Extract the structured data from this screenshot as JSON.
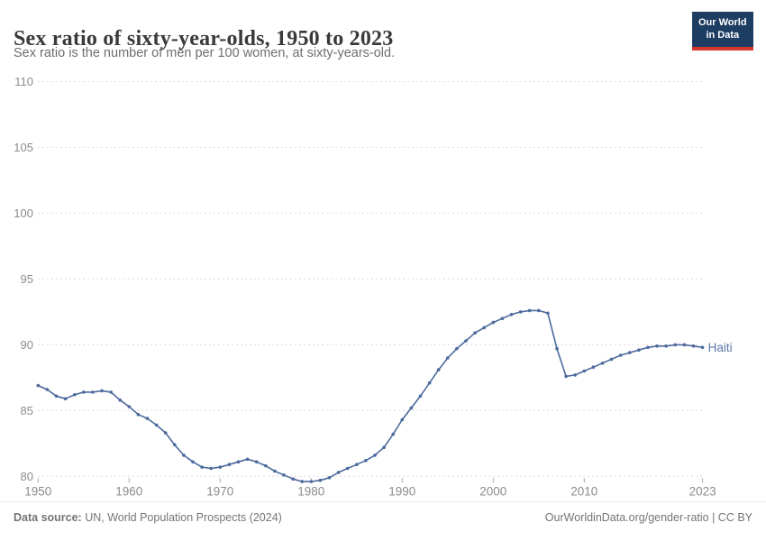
{
  "header": {
    "title": "Sex ratio of sixty-year-olds, 1950 to 2023",
    "subtitle": "Sex ratio is the number of men per 100 women, at sixty-years-old.",
    "logo_line1": "Our World",
    "logo_line2": "in Data"
  },
  "chart_data": {
    "type": "line",
    "title": "Sex ratio of sixty-year-olds, 1950 to 2023",
    "xlabel": "",
    "ylabel": "",
    "xlim": [
      1950,
      2023
    ],
    "ylim": [
      80,
      110
    ],
    "x_ticks": [
      1950,
      1960,
      1970,
      1980,
      1990,
      2000,
      2010,
      2023
    ],
    "y_ticks": [
      80,
      85,
      90,
      95,
      100,
      105,
      110
    ],
    "grid": "horizontal-dashed",
    "legend_position": "end-of-line-label",
    "entity_label": "Haiti",
    "series": [
      {
        "name": "Haiti",
        "x": [
          1950,
          1951,
          1952,
          1953,
          1954,
          1955,
          1956,
          1957,
          1958,
          1959,
          1960,
          1961,
          1962,
          1963,
          1964,
          1965,
          1966,
          1967,
          1968,
          1969,
          1970,
          1971,
          1972,
          1973,
          1974,
          1975,
          1976,
          1977,
          1978,
          1979,
          1980,
          1981,
          1982,
          1983,
          1984,
          1985,
          1986,
          1987,
          1988,
          1989,
          1990,
          1991,
          1992,
          1993,
          1994,
          1995,
          1996,
          1997,
          1998,
          1999,
          2000,
          2001,
          2002,
          2003,
          2004,
          2005,
          2006,
          2007,
          2008,
          2009,
          2010,
          2011,
          2012,
          2013,
          2014,
          2015,
          2016,
          2017,
          2018,
          2019,
          2020,
          2021,
          2022,
          2023
        ],
        "values": [
          86.9,
          86.6,
          86.1,
          85.9,
          86.2,
          86.4,
          86.4,
          86.5,
          86.4,
          85.8,
          85.3,
          84.7,
          84.4,
          83.9,
          83.3,
          82.4,
          81.6,
          81.1,
          80.7,
          80.6,
          80.7,
          80.9,
          81.1,
          81.3,
          81.1,
          80.8,
          80.4,
          80.1,
          79.8,
          79.6,
          79.6,
          79.7,
          79.9,
          80.3,
          80.6,
          80.9,
          81.2,
          81.6,
          82.2,
          83.2,
          84.3,
          85.2,
          86.1,
          87.1,
          88.1,
          89.0,
          89.7,
          90.3,
          90.9,
          91.3,
          91.7,
          92.0,
          92.3,
          92.5,
          92.6,
          92.6,
          92.4,
          89.7,
          87.6,
          87.7,
          88.0,
          88.3,
          88.6,
          88.9,
          89.2,
          89.4,
          89.6,
          89.8,
          89.9,
          89.9,
          90.0,
          90.0,
          89.9,
          89.8
        ]
      }
    ],
    "colors": {
      "line": "#4c6a9c",
      "entity_label": "#5b77a9",
      "gridline": "#dcdcdc",
      "axis_label": "#8c8c8c",
      "tick_mark": "#ababab"
    }
  },
  "footer": {
    "source_label": "Data source:",
    "source_value": " UN, World Population Prospects (2024)",
    "credit": "OurWorldinData.org/gender-ratio | CC BY"
  }
}
